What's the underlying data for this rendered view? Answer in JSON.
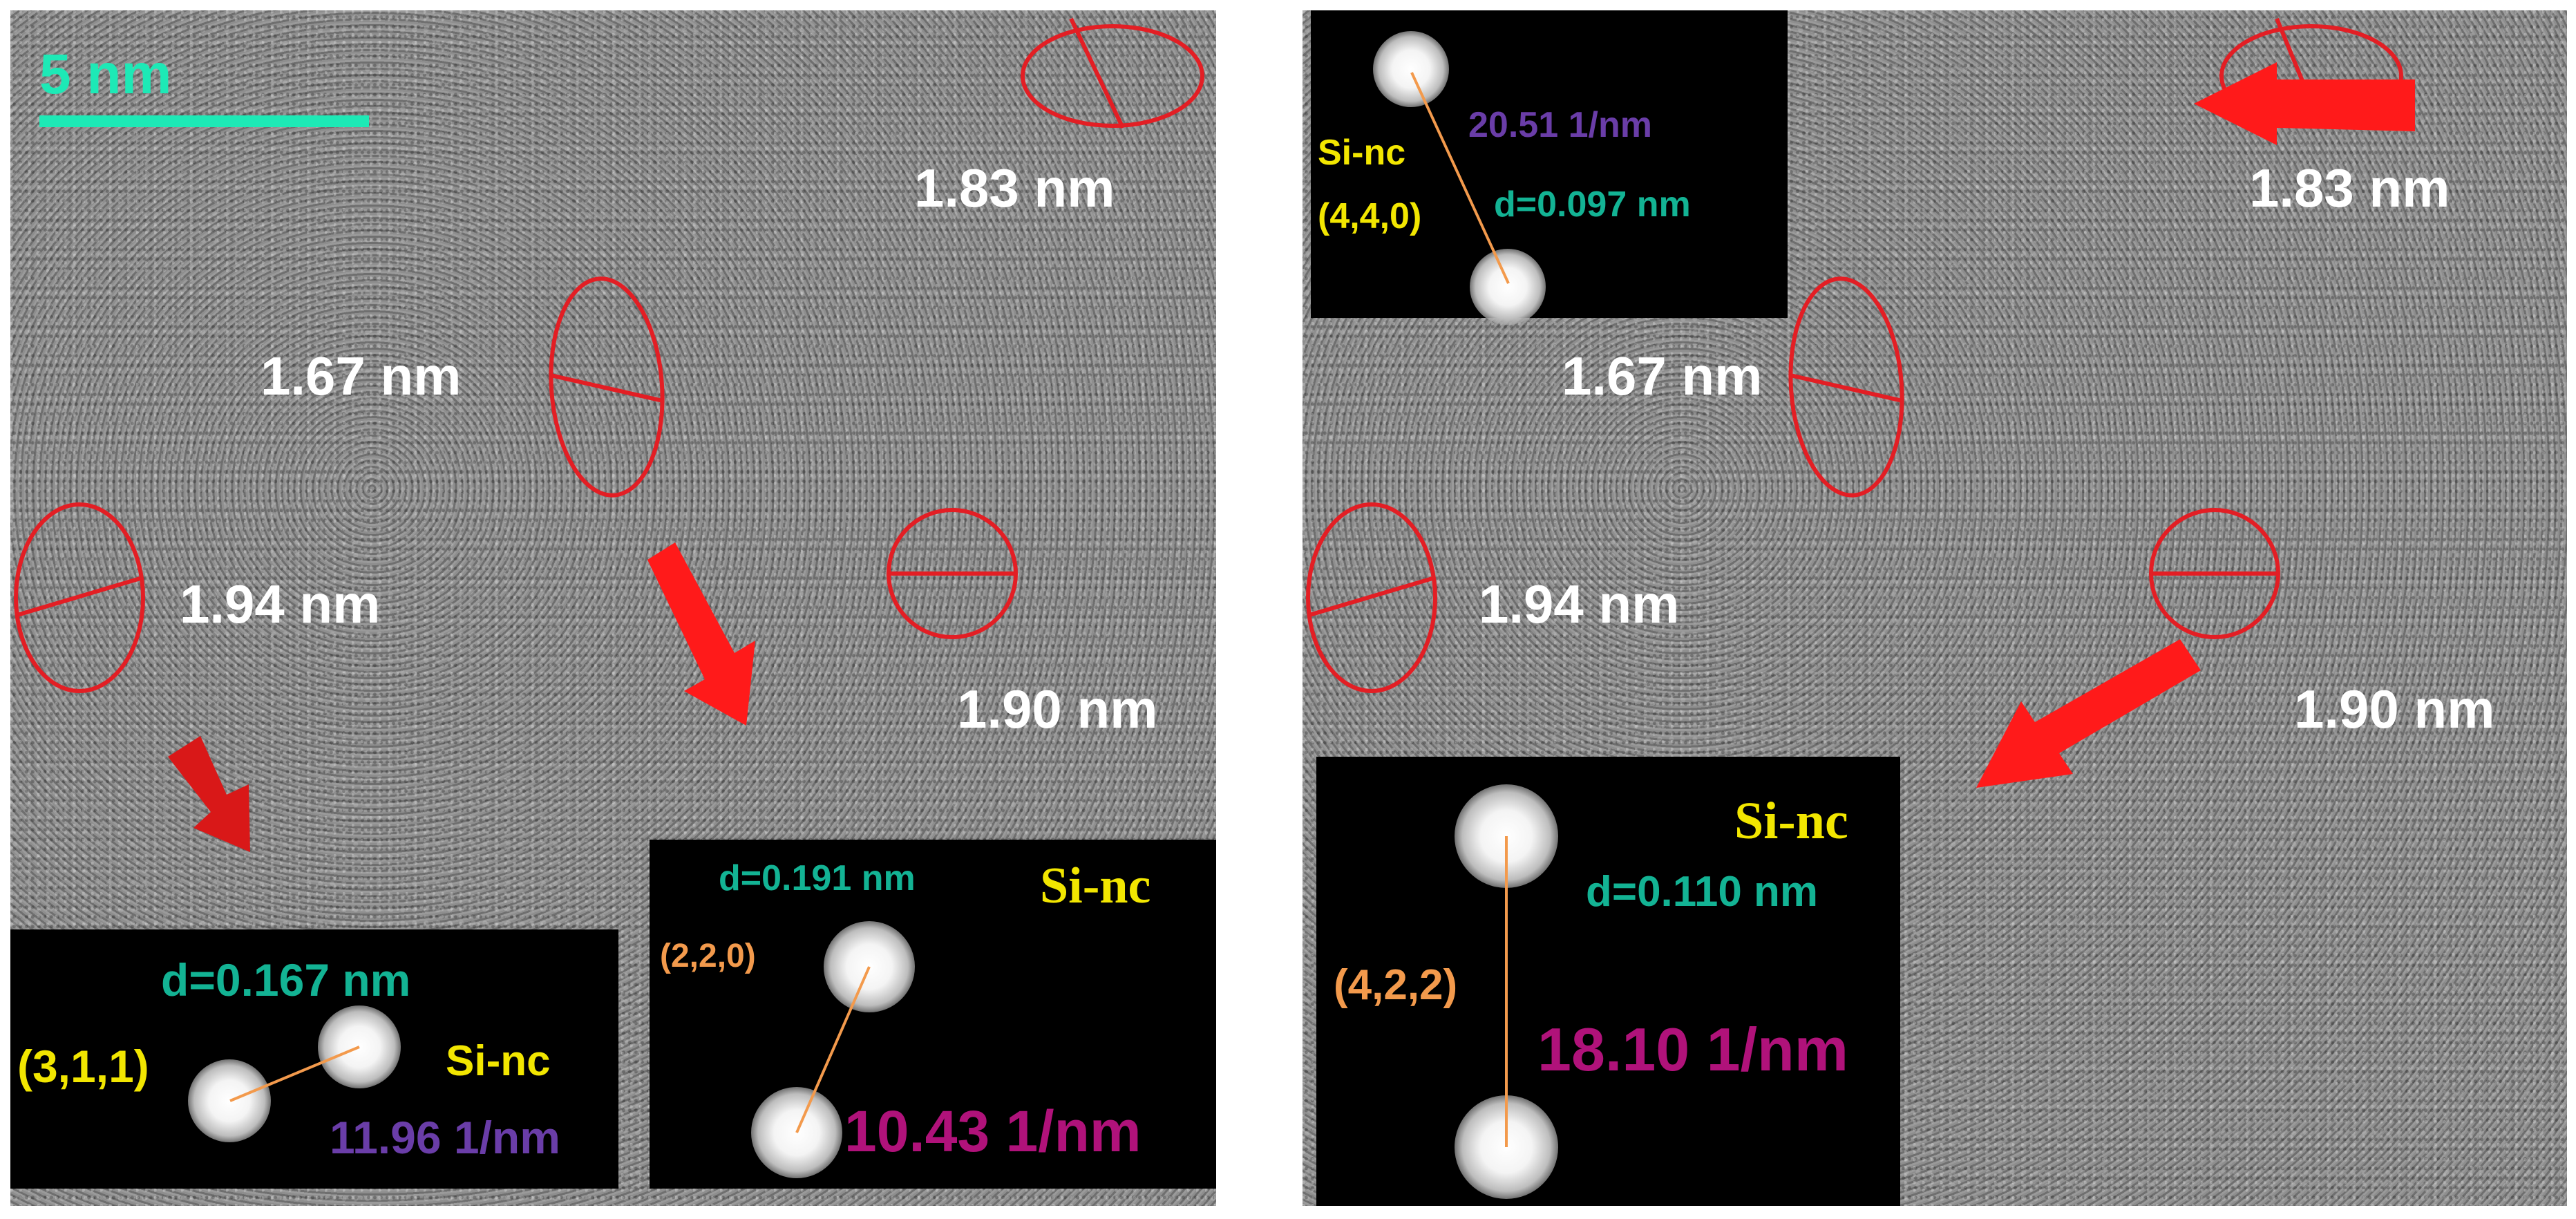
{
  "colors": {
    "ellipse": "#e31e24",
    "arrow": "#ff1a1a",
    "scale_bar": "#1de9b6",
    "d_spacing": "#13b394",
    "plane": "#f2e600",
    "plane_orange": "#f39a4c",
    "freq_purple": "#6a3da8",
    "freq_magenta": "#b0127a"
  },
  "left": {
    "scale_bar_label": "5 nm",
    "size_labels": [
      "1.83 nm",
      "1.67 nm",
      "1.94 nm",
      "1.90 nm"
    ],
    "insets": [
      {
        "d": "d=0.167 nm",
        "plane": "(3,1,1)",
        "phase": "Si-nc",
        "freq": "11.96 1/nm"
      },
      {
        "d": "d=0.191 nm",
        "plane": "(2,2,0)",
        "phase": "Si-nc",
        "freq": "10.43 1/nm"
      }
    ]
  },
  "right": {
    "size_labels": [
      "1.83 nm",
      "1.67 nm",
      "1.94 nm",
      "1.90 nm"
    ],
    "insets": [
      {
        "d": "d=0.097 nm",
        "plane": "(4,4,0)",
        "phase": "Si-nc",
        "freq": "20.51 1/nm"
      },
      {
        "d": "d=0.110 nm",
        "plane": "(4,2,2)",
        "phase": "Si-nc",
        "freq": "18.10 1/nm"
      }
    ]
  }
}
